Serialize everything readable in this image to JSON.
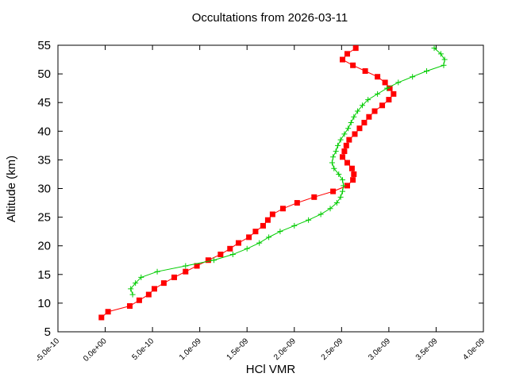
{
  "chart_data": {
    "type": "scatter-line",
    "title": "Occultations from 2026-03-11",
    "x_label": "HCl VMR",
    "y_label": "Altitude (km)",
    "xlim": [
      -5e-10,
      4e-09
    ],
    "ylim": [
      5,
      55
    ],
    "xticks": [
      {
        "value": -5e-10,
        "label": "-5.0e-10"
      },
      {
        "value": 0,
        "label": "0.0e+00"
      },
      {
        "value": 5e-10,
        "label": "5.0e-10"
      },
      {
        "value": 1e-09,
        "label": "1.0e-09"
      },
      {
        "value": 1.5e-09,
        "label": "1.5e-09"
      },
      {
        "value": 2e-09,
        "label": "2.0e-09"
      },
      {
        "value": 2.5e-09,
        "label": "2.5e-09"
      },
      {
        "value": 3e-09,
        "label": "3.0e-09"
      },
      {
        "value": 3.5e-09,
        "label": "3.5e-09"
      },
      {
        "value": 4e-09,
        "label": "4.0e-09"
      }
    ],
    "yticks": [
      5,
      10,
      15,
      20,
      25,
      30,
      35,
      40,
      45,
      50,
      55
    ],
    "series": [
      {
        "color": "#ff0000",
        "marker": "square",
        "x": [
          -4e-11,
          3e-11,
          2.6e-10,
          3.6e-10,
          4.6e-10,
          5.2e-10,
          6.2e-10,
          7.3e-10,
          8.5e-10,
          9.7e-10,
          1.09e-09,
          1.22e-09,
          1.32e-09,
          1.41e-09,
          1.52e-09,
          1.59e-09,
          1.67e-09,
          1.72e-09,
          1.77e-09,
          1.88e-09,
          2.03e-09,
          2.21e-09,
          2.41e-09,
          2.56e-09,
          2.62e-09,
          2.63e-09,
          2.61e-09,
          2.56e-09,
          2.51e-09,
          2.53e-09,
          2.55e-09,
          2.58e-09,
          2.64e-09,
          2.69e-09,
          2.74e-09,
          2.79e-09,
          2.85e-09,
          2.93e-09,
          3e-09,
          3.05e-09,
          3.01e-09,
          2.96e-09,
          2.88e-09,
          2.75e-09,
          2.62e-09,
          2.51e-09,
          2.56e-09,
          2.65e-09
        ],
        "y": [
          7.5,
          8.5,
          9.5,
          10.5,
          11.5,
          12.5,
          13.5,
          14.5,
          15.5,
          16.5,
          17.5,
          18.5,
          19.5,
          20.5,
          21.5,
          22.5,
          23.5,
          24.5,
          25.5,
          26.5,
          27.5,
          28.5,
          29.5,
          30.5,
          31.5,
          32.5,
          33.5,
          34.5,
          35.5,
          36.5,
          37.5,
          38.5,
          39.5,
          40.5,
          41.5,
          42.5,
          43.5,
          44.5,
          45.5,
          46.5,
          47.5,
          48.5,
          49.5,
          50.5,
          51.5,
          52.5,
          53.5,
          54.5
        ]
      },
      {
        "color": "#00cc00",
        "marker": "plus",
        "x": [
          2.9e-10,
          2.7e-10,
          3.2e-10,
          3.8e-10,
          5.5e-10,
          8.5e-10,
          1.15e-09,
          1.35e-09,
          1.5e-09,
          1.63e-09,
          1.73e-09,
          1.85e-09,
          2e-09,
          2.15e-09,
          2.28e-09,
          2.38e-09,
          2.45e-09,
          2.49e-09,
          2.51e-09,
          2.52e-09,
          2.51e-09,
          2.47e-09,
          2.42e-09,
          2.4e-09,
          2.41e-09,
          2.44e-09,
          2.46e-09,
          2.49e-09,
          2.53e-09,
          2.57e-09,
          2.6e-09,
          2.63e-09,
          2.67e-09,
          2.72e-09,
          2.78e-09,
          2.88e-09,
          2.98e-09,
          3.1e-09,
          3.25e-09,
          3.4e-09,
          3.58e-09,
          3.59e-09,
          3.55e-09,
          3.48e-09
        ],
        "y": [
          11.5,
          12.5,
          13.5,
          14.5,
          15.5,
          16.5,
          17.5,
          18.5,
          19.5,
          20.5,
          21.5,
          22.5,
          23.5,
          24.5,
          25.5,
          26.5,
          27.5,
          28.5,
          29.5,
          30.5,
          31.5,
          32.5,
          33.5,
          34.5,
          35.5,
          36.5,
          37.5,
          38.5,
          39.5,
          40.5,
          41.5,
          42.5,
          43.5,
          44.5,
          45.5,
          46.5,
          47.5,
          48.5,
          49.5,
          50.5,
          51.5,
          52.5,
          53.5,
          54.5
        ]
      }
    ]
  }
}
